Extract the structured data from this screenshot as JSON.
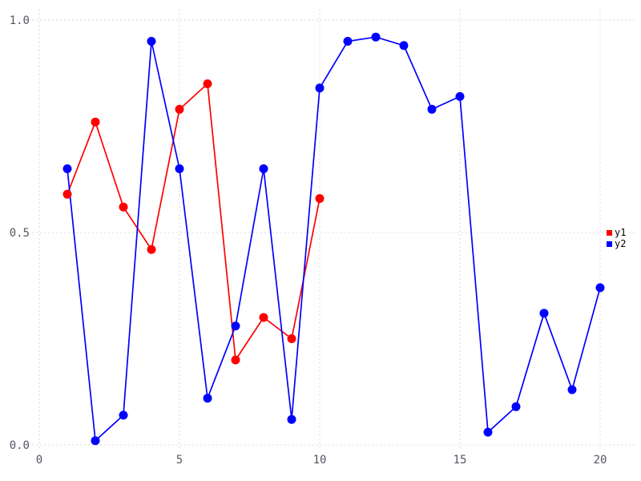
{
  "chart_data": {
    "type": "line",
    "title": "",
    "xlabel": "",
    "ylabel": "",
    "xlim": [
      0,
      20
    ],
    "ylim": [
      0.0,
      1.0
    ],
    "grid": true,
    "grid_style": "dotted",
    "x_tick_values": [
      0,
      5,
      10,
      15,
      20
    ],
    "x_tick_labels": [
      "0",
      "5",
      "10",
      "15",
      "20"
    ],
    "y_tick_values": [
      0.0,
      0.5,
      1.0
    ],
    "y_tick_labels": [
      "0.0",
      "0.5",
      "1.0"
    ],
    "colors": {
      "background": "#ffffff",
      "grid": "#d9d9e3",
      "tick_label": "#555566",
      "legend_text": "#000000"
    },
    "legend": {
      "position": "right-middle",
      "entries": [
        "y1",
        "y2"
      ]
    },
    "series": [
      {
        "name": "y1",
        "color": "#ff0000",
        "marker": "circle",
        "x": [
          1,
          2,
          3,
          4,
          5,
          6,
          7,
          8,
          9,
          10
        ],
        "y": [
          0.59,
          0.76,
          0.56,
          0.46,
          0.79,
          0.85,
          0.2,
          0.3,
          0.25,
          0.58
        ]
      },
      {
        "name": "y2",
        "color": "#0000ff",
        "marker": "circle",
        "x": [
          1,
          2,
          3,
          4,
          5,
          6,
          7,
          8,
          9,
          10,
          11,
          12,
          13,
          14,
          15,
          16,
          17,
          18,
          19,
          20
        ],
        "y": [
          0.65,
          0.01,
          0.07,
          0.95,
          0.65,
          0.11,
          0.28,
          0.65,
          0.06,
          0.84,
          0.95,
          0.96,
          0.94,
          0.79,
          0.82,
          0.03,
          0.09,
          0.31,
          0.13,
          0.37
        ]
      }
    ]
  }
}
